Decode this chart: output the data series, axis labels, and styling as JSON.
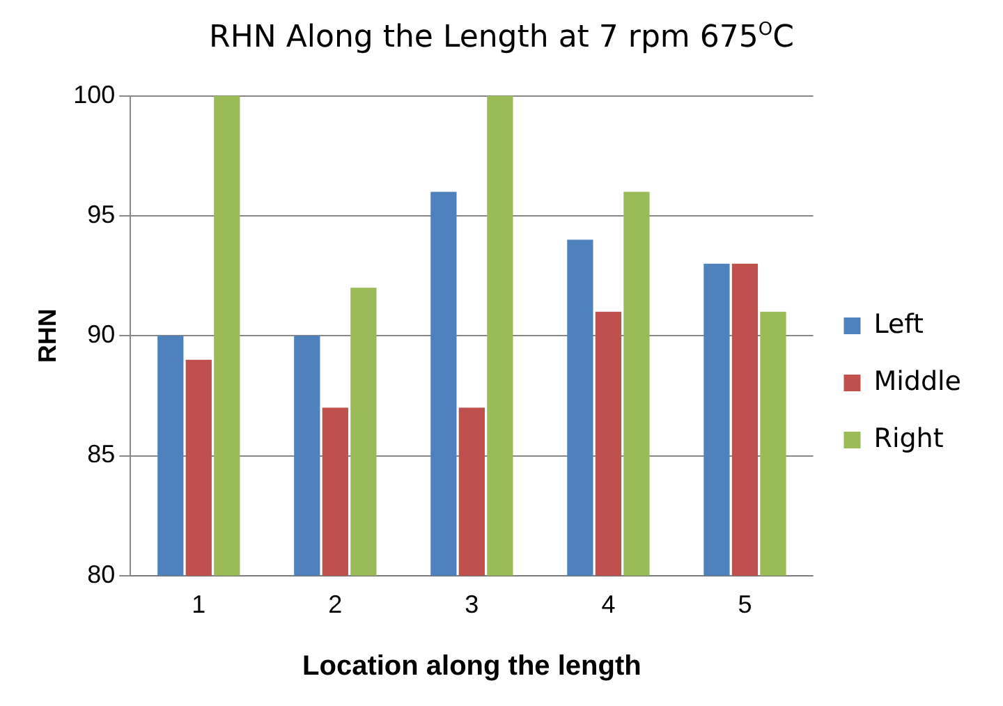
{
  "chart_data": {
    "type": "bar",
    "title": "RHN Along the Length at 7 rpm 675$^{O}$C",
    "xlabel": "Location along the length",
    "ylabel": "RHN",
    "categories": [
      "1",
      "2",
      "3",
      "4",
      "5"
    ],
    "series": [
      {
        "name": "Left",
        "color": "#4f81bd",
        "values": [
          90,
          90,
          96,
          94,
          93
        ]
      },
      {
        "name": "Middle",
        "color": "#c0504d",
        "values": [
          89,
          87,
          87,
          91,
          93
        ]
      },
      {
        "name": "Right",
        "color": "#9bbb59",
        "values": [
          100,
          92,
          100,
          96,
          91
        ]
      }
    ],
    "ylim": [
      80,
      100
    ],
    "yticks": [
      80,
      85,
      90,
      95,
      100
    ],
    "grid": "y",
    "legend": "right"
  }
}
